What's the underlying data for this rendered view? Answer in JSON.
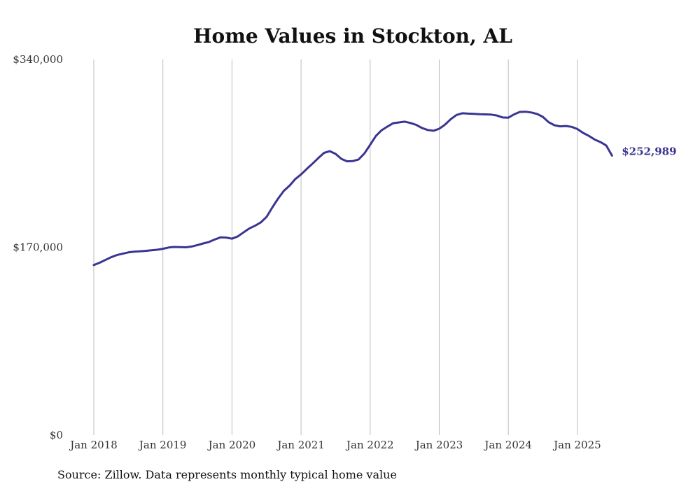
{
  "chart_data": {
    "type": "line",
    "title": "Home Values in Stockton, AL",
    "xlabel": "",
    "ylabel": "",
    "ylim": [
      0,
      340000
    ],
    "y_ticks": [
      {
        "value": 0,
        "label": "$0"
      },
      {
        "value": 170000,
        "label": "$170,000"
      },
      {
        "value": 340000,
        "label": "$340,000"
      }
    ],
    "x_ticks": [
      {
        "value": "2018-01",
        "label": "Jan 2018"
      },
      {
        "value": "2019-01",
        "label": "Jan 2019"
      },
      {
        "value": "2020-01",
        "label": "Jan 2020"
      },
      {
        "value": "2021-01",
        "label": "Jan 2021"
      },
      {
        "value": "2022-01",
        "label": "Jan 2022"
      },
      {
        "value": "2023-01",
        "label": "Jan 2023"
      },
      {
        "value": "2024-01",
        "label": "Jan 2024"
      },
      {
        "value": "2025-01",
        "label": "Jan 2025"
      }
    ],
    "grid": "vertical",
    "series": [
      {
        "color": "#3a3592",
        "end_label": "$252,989",
        "x": [
          "2018-01",
          "2018-02",
          "2018-03",
          "2018-04",
          "2018-05",
          "2018-06",
          "2018-07",
          "2018-08",
          "2018-09",
          "2018-10",
          "2018-11",
          "2018-12",
          "2019-01",
          "2019-02",
          "2019-03",
          "2019-04",
          "2019-05",
          "2019-06",
          "2019-07",
          "2019-08",
          "2019-09",
          "2019-10",
          "2019-11",
          "2019-12",
          "2020-01",
          "2020-02",
          "2020-03",
          "2020-04",
          "2020-05",
          "2020-06",
          "2020-07",
          "2020-08",
          "2020-09",
          "2020-10",
          "2020-11",
          "2020-12",
          "2021-01",
          "2021-02",
          "2021-03",
          "2021-04",
          "2021-05",
          "2021-06",
          "2021-07",
          "2021-08",
          "2021-09",
          "2021-10",
          "2021-11",
          "2021-12",
          "2022-01",
          "2022-02",
          "2022-03",
          "2022-04",
          "2022-05",
          "2022-06",
          "2022-07",
          "2022-08",
          "2022-09",
          "2022-10",
          "2022-11",
          "2022-12",
          "2023-01",
          "2023-02",
          "2023-03",
          "2023-04",
          "2023-05",
          "2023-06",
          "2023-07",
          "2023-08",
          "2023-09",
          "2023-10",
          "2023-11",
          "2023-12",
          "2024-01",
          "2024-02",
          "2024-03",
          "2024-04",
          "2024-05",
          "2024-06",
          "2024-07",
          "2024-08",
          "2024-09",
          "2024-10",
          "2024-11",
          "2024-12",
          "2025-01",
          "2025-02",
          "2025-03",
          "2025-04",
          "2025-05",
          "2025-06",
          "2025-07"
        ],
        "values": [
          154000,
          156000,
          158500,
          161000,
          163000,
          164200,
          165400,
          166000,
          166300,
          166800,
          167300,
          167800,
          168700,
          169800,
          170300,
          170100,
          170000,
          170700,
          172000,
          173500,
          174800,
          177000,
          179000,
          178800,
          177800,
          179800,
          183500,
          187000,
          189500,
          192500,
          197500,
          206000,
          214000,
          221000,
          225800,
          231800,
          236000,
          241000,
          245800,
          250800,
          255500,
          257000,
          254500,
          250000,
          247800,
          248000,
          249500,
          255000,
          262800,
          270800,
          276000,
          279300,
          282300,
          283000,
          283700,
          282500,
          280800,
          278000,
          276200,
          275500,
          277300,
          281000,
          286000,
          289800,
          291300,
          291000,
          290800,
          290500,
          290300,
          290100,
          289300,
          287500,
          287300,
          290300,
          292500,
          292700,
          292000,
          290700,
          288000,
          283200,
          280500,
          279500,
          279800,
          279000,
          277000,
          273500,
          270800,
          267500,
          265200,
          262200,
          252989
        ]
      }
    ]
  },
  "source_note": "Source: Zillow. Data represents monthly typical home value"
}
